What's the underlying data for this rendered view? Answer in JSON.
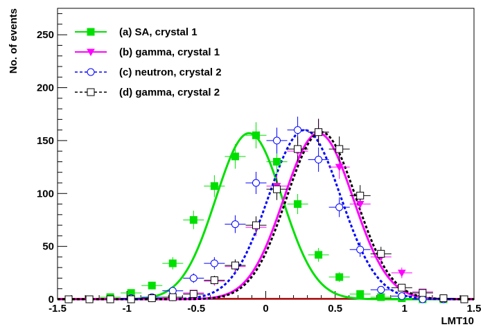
{
  "chart_data": {
    "type": "scatter",
    "title": "",
    "xlabel": "LMT10",
    "ylabel": "No. of events",
    "xlim": [
      -1.5,
      1.5
    ],
    "ylim": [
      0,
      275
    ],
    "grid": false,
    "legend_position": "top-left",
    "x_tick_labels": [
      "-1.5",
      "-1",
      "-0.5",
      "0",
      "0.5",
      "1",
      "1.5"
    ],
    "y_tick_labels": [
      "0",
      "50",
      "100",
      "150",
      "200",
      "250"
    ],
    "x_ticks": [
      -1.5,
      -1,
      -0.5,
      0,
      0.5,
      1,
      1.5
    ],
    "y_ticks": [
      0,
      50,
      100,
      150,
      200,
      250
    ],
    "series": [
      {
        "name": "(a) SA, crystal 1",
        "color": "#00e000",
        "marker": "filled-square",
        "line_style": "solid",
        "fit": {
          "amplitude": 157,
          "mean": -0.12,
          "sigma": 0.24
        },
        "x": [
          -1.42,
          -1.27,
          -1.12,
          -0.97,
          -0.82,
          -0.67,
          -0.52,
          -0.37,
          -0.22,
          -0.07,
          0.08,
          0.23,
          0.38,
          0.53,
          0.68,
          0.83,
          0.98,
          1.13,
          1.28,
          1.43
        ],
        "y": [
          0,
          0,
          2,
          6,
          13,
          34,
          75,
          107,
          135,
          155,
          130,
          90,
          42,
          21,
          5,
          2,
          1,
          0,
          0,
          0
        ],
        "yerr": [
          0,
          0,
          1.4,
          2.4,
          3.6,
          5.8,
          8.7,
          10.3,
          11.6,
          12.4,
          11.4,
          9.5,
          6.5,
          4.6,
          2.2,
          1.4,
          1,
          0,
          0,
          0
        ]
      },
      {
        "name": "(b) gamma, crystal 1",
        "color": "#ff00ff",
        "marker": "filled-triangle-down",
        "line_style": "solid",
        "fit": {
          "amplitude": 157,
          "mean": 0.38,
          "sigma": 0.25
        },
        "x": [
          -1.42,
          -1.27,
          -1.12,
          -0.97,
          -0.82,
          -0.67,
          -0.52,
          -0.37,
          -0.22,
          -0.07,
          0.08,
          0.23,
          0.38,
          0.53,
          0.68,
          0.83,
          0.98,
          1.13,
          1.28,
          1.43
        ],
        "y": [
          0,
          0,
          0,
          0,
          1,
          2,
          6,
          17,
          31,
          68,
          107,
          140,
          158,
          125,
          90,
          40,
          25,
          7,
          1,
          0
        ],
        "yerr": [
          0,
          0,
          0,
          0,
          1,
          1.4,
          2.4,
          4.1,
          5.6,
          8.2,
          10.3,
          11.8,
          12.6,
          11.2,
          9.5,
          6.3,
          5,
          2.6,
          1,
          0
        ]
      },
      {
        "name": "(c) neutron, crystal 2",
        "color": "#0000ff",
        "marker": "open-circle",
        "line_style": "dashed",
        "fit": {
          "amplitude": 160,
          "mean": 0.28,
          "sigma": 0.26
        },
        "x": [
          -1.42,
          -1.27,
          -1.12,
          -0.97,
          -0.82,
          -0.67,
          -0.52,
          -0.37,
          -0.22,
          -0.07,
          0.08,
          0.23,
          0.38,
          0.53,
          0.68,
          0.83,
          0.98,
          1.13,
          1.28,
          1.43
        ],
        "y": [
          0,
          0,
          0,
          1,
          2,
          8,
          20,
          34,
          71,
          110,
          150,
          160,
          132,
          87,
          47,
          9,
          3,
          0,
          0,
          0
        ],
        "yerr": [
          0,
          0,
          0,
          1,
          1.4,
          2.8,
          4.5,
          5.8,
          8.4,
          10.5,
          12.2,
          12.6,
          11.5,
          9.3,
          6.9,
          3,
          1.7,
          0,
          0,
          0
        ]
      },
      {
        "name": "(d) gamma, crystal 2",
        "color": "#000000",
        "marker": "open-square",
        "line_style": "dashed",
        "fit": {
          "amplitude": 158,
          "mean": 0.4,
          "sigma": 0.25
        },
        "x": [
          -1.42,
          -1.27,
          -1.12,
          -0.97,
          -0.82,
          -0.67,
          -0.52,
          -0.37,
          -0.22,
          -0.07,
          0.08,
          0.23,
          0.38,
          0.53,
          0.68,
          0.83,
          0.98,
          1.13,
          1.28,
          1.43
        ],
        "y": [
          0,
          0,
          0,
          0,
          1,
          2,
          5,
          18,
          32,
          70,
          104,
          142,
          158,
          142,
          98,
          43,
          11,
          6,
          1,
          0
        ],
        "yerr": [
          0,
          0,
          0,
          0,
          1,
          1.4,
          2.2,
          4.2,
          5.7,
          8.4,
          10.2,
          11.9,
          12.6,
          11.9,
          9.9,
          6.6,
          3.3,
          2.4,
          1,
          0
        ]
      }
    ]
  }
}
